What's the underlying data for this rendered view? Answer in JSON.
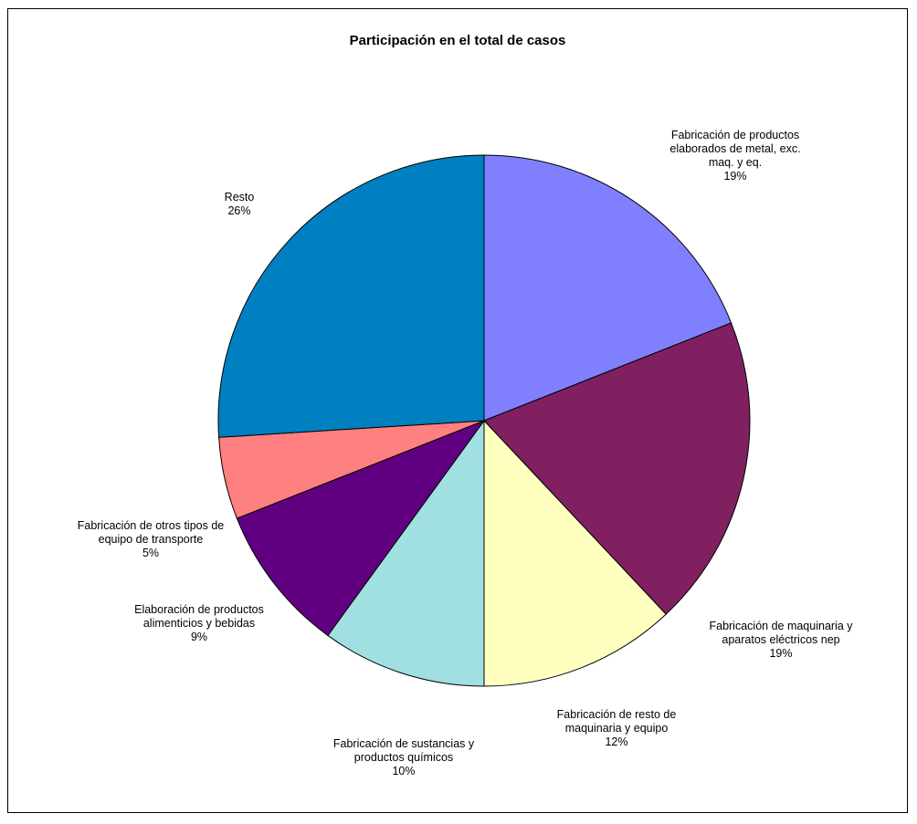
{
  "chart_data": {
    "type": "pie",
    "title": "Participación en el total de casos",
    "start_angle_deg": 0,
    "direction": "clockwise",
    "slices": [
      {
        "label_lines": [
          "Fabricación de productos",
          "elaborados de metal, exc.",
          "maq. y eq."
        ],
        "value": 19,
        "percent_label": "19%",
        "color": "#8080FF"
      },
      {
        "label_lines": [
          "Fabricación de maquinaria y",
          "aparatos eléctricos nep"
        ],
        "value": 19,
        "percent_label": "19%",
        "color": "#802060"
      },
      {
        "label_lines": [
          "Fabricación de resto de",
          "maquinaria y equipo"
        ],
        "value": 12,
        "percent_label": "12%",
        "color": "#FFFFC0"
      },
      {
        "label_lines": [
          "Fabricación de sustancias y",
          "productos químicos"
        ],
        "value": 10,
        "percent_label": "10%",
        "color": "#A0E0E0"
      },
      {
        "label_lines": [
          "Elaboración de productos",
          "alimenticios y bebidas"
        ],
        "value": 9,
        "percent_label": "9%",
        "color": "#600080"
      },
      {
        "label_lines": [
          "Fabricación de otros tipos de",
          "equipo de transporte"
        ],
        "value": 5,
        "percent_label": "5%",
        "color": "#FF8080"
      },
      {
        "label_lines": [
          "Resto"
        ],
        "value": 26,
        "percent_label": "26%",
        "color": "#0080C0"
      }
    ]
  }
}
